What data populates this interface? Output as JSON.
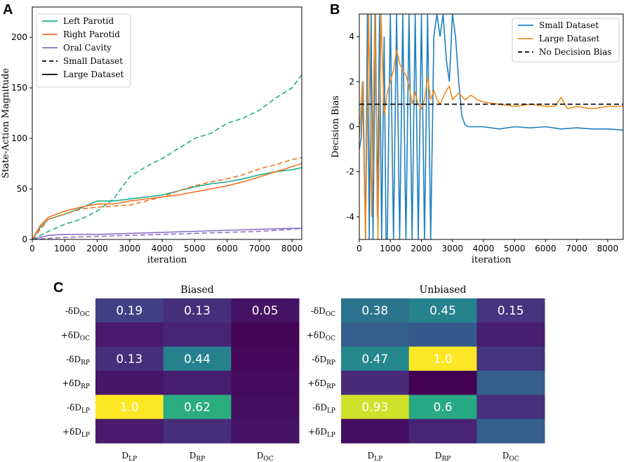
{
  "panels": {
    "a": "A",
    "b": "B",
    "c": "C"
  },
  "colors": {
    "left_parotid": "#1aaf8e",
    "right_parotid": "#f27322",
    "oral_cavity": "#8a72c8",
    "small_dataset": "#1f7fbf",
    "large_dataset": "#f38b1f",
    "no_bias": "#000000"
  },
  "chart_data": [
    {
      "id": "A",
      "type": "line",
      "xlabel": "iteration",
      "ylabel": "State-Action Magnitude",
      "xlim": [
        0,
        8300
      ],
      "ylim": [
        0,
        230
      ],
      "xticks": [
        0,
        1000,
        2000,
        3000,
        4000,
        5000,
        6000,
        7000,
        8000
      ],
      "yticks": [
        0,
        50,
        100,
        150,
        200
      ],
      "legend": {
        "position": "top-left",
        "entries": [
          {
            "label": "Left Parotid",
            "color": "#1aaf8e",
            "dash": false
          },
          {
            "label": "Right Parotid",
            "color": "#f27322",
            "dash": false
          },
          {
            "label": "Oral Cavity",
            "color": "#8a72c8",
            "dash": false
          },
          {
            "label": "Small Dataset",
            "color": "#000000",
            "dash": true
          },
          {
            "label": "Large Dataset",
            "color": "#000000",
            "dash": false
          }
        ]
      },
      "series": [
        {
          "name": "Left Parotid (Large)",
          "color": "#1aaf8e",
          "dash": false,
          "x": [
            0,
            250,
            500,
            1000,
            1500,
            2000,
            2500,
            3000,
            3500,
            4000,
            4500,
            5000,
            5500,
            6000,
            6500,
            7000,
            7500,
            8000,
            8300
          ],
          "y": [
            0,
            12,
            20,
            25,
            31,
            38,
            38,
            40,
            42,
            44,
            48,
            52,
            55,
            57,
            60,
            64,
            67,
            69,
            71
          ]
        },
        {
          "name": "Right Parotid (Large)",
          "color": "#f27322",
          "dash": false,
          "x": [
            0,
            250,
            500,
            1000,
            1500,
            2000,
            2500,
            3000,
            3500,
            4000,
            4500,
            5000,
            5500,
            6000,
            6500,
            7000,
            7500,
            8000,
            8300
          ],
          "y": [
            0,
            14,
            22,
            28,
            32,
            35,
            35,
            38,
            40,
            42,
            44,
            47,
            50,
            53,
            57,
            62,
            67,
            72,
            75
          ]
        },
        {
          "name": "Oral Cavity (Large)",
          "color": "#8a72c8",
          "dash": false,
          "x": [
            0,
            500,
            1000,
            2000,
            3000,
            4000,
            5000,
            6000,
            7000,
            8000,
            8300
          ],
          "y": [
            0,
            4,
            5,
            5,
            6,
            7,
            8,
            9,
            10,
            11,
            11
          ]
        },
        {
          "name": "Left Parotid (Small)",
          "color": "#1aaf8e",
          "dash": true,
          "x": [
            0,
            500,
            1000,
            1500,
            2000,
            2500,
            3000,
            3500,
            4000,
            4500,
            5000,
            5500,
            6000,
            6500,
            7000,
            7500,
            8000,
            8300
          ],
          "y": [
            0,
            8,
            15,
            20,
            28,
            40,
            62,
            72,
            80,
            90,
            100,
            105,
            115,
            120,
            128,
            140,
            150,
            163
          ]
        },
        {
          "name": "Right Parotid (Small)",
          "color": "#f27322",
          "dash": true,
          "x": [
            0,
            500,
            1000,
            1500,
            2000,
            2500,
            3000,
            3500,
            4000,
            4500,
            5000,
            5500,
            6000,
            6500,
            7000,
            7500,
            8000,
            8300
          ],
          "y": [
            0,
            20,
            25,
            30,
            32,
            33,
            34,
            38,
            42,
            48,
            53,
            57,
            60,
            64,
            70,
            74,
            79,
            81
          ]
        },
        {
          "name": "Oral Cavity (Small)",
          "color": "#8a72c8",
          "dash": true,
          "x": [
            0,
            1000,
            2000,
            3000,
            4000,
            5000,
            6000,
            7000,
            8000,
            8300
          ],
          "y": [
            0,
            2,
            3,
            4,
            5,
            6,
            7,
            8,
            10,
            11
          ]
        }
      ]
    },
    {
      "id": "B",
      "type": "line",
      "xlabel": "iteration",
      "ylabel": "Decision Bias",
      "xlim": [
        0,
        8500
      ],
      "ylim": [
        -5,
        5
      ],
      "xticks": [
        0,
        1000,
        2000,
        3000,
        4000,
        5000,
        6000,
        7000,
        8000
      ],
      "yticks": [
        -4,
        -2,
        0,
        2,
        4
      ],
      "legend": {
        "position": "top-right",
        "entries": [
          {
            "label": "Small Dataset",
            "color": "#1f7fbf",
            "dash": false
          },
          {
            "label": "Large Dataset",
            "color": "#f38b1f",
            "dash": false
          },
          {
            "label": "No Decision Bias",
            "color": "#000000",
            "dash": true
          }
        ]
      },
      "series": [
        {
          "name": "Small Dataset",
          "color": "#1f7fbf",
          "dash": false,
          "x": [
            0,
            60,
            120,
            200,
            260,
            320,
            380,
            440,
            520,
            580,
            650,
            720,
            800,
            860,
            900,
            1000,
            1100,
            1200,
            1300,
            1400,
            1500,
            1600,
            1700,
            1800,
            1900,
            2000,
            2100,
            2200,
            2300,
            2400,
            2500,
            2600,
            2700,
            2800,
            2900,
            3000,
            3100,
            3200,
            3300,
            3400,
            3500,
            4000,
            4500,
            5000,
            5500,
            6000,
            6500,
            7000,
            7500,
            8000,
            8500
          ],
          "y": [
            -1,
            -0.5,
            2,
            -5,
            5,
            -5,
            5,
            -5,
            5,
            -4,
            5,
            -5,
            4,
            -5,
            -5,
            5,
            -5,
            5,
            -5,
            5,
            -5,
            5,
            -5,
            5,
            -5,
            5,
            -5,
            5,
            -5,
            4,
            5,
            4,
            5,
            3,
            2,
            5,
            4,
            2,
            0.5,
            0.1,
            0.0,
            0.0,
            -0.1,
            0.0,
            -0.05,
            0.0,
            -0.1,
            -0.05,
            -0.1,
            -0.1,
            -0.15
          ]
        },
        {
          "name": "Large Dataset",
          "color": "#f38b1f",
          "dash": false,
          "x": [
            0,
            100,
            200,
            300,
            400,
            500,
            600,
            700,
            800,
            900,
            1000,
            1100,
            1200,
            1300,
            1400,
            1500,
            1600,
            1700,
            1800,
            1900,
            2000,
            2100,
            2200,
            2300,
            2400,
            2500,
            2600,
            2700,
            2800,
            2900,
            3000,
            3200,
            3400,
            3600,
            3800,
            4000,
            4500,
            5000,
            5500,
            6000,
            6300,
            6500,
            6700,
            7000,
            7500,
            8000,
            8500
          ],
          "y": [
            -0.5,
            2,
            -5,
            5,
            -4,
            5,
            -5,
            5,
            0.5,
            1.5,
            2.0,
            2.5,
            3.4,
            2.8,
            2.5,
            2.3,
            1.8,
            1.0,
            1.5,
            1.0,
            0.8,
            1.2,
            2.2,
            1.2,
            1.6,
            1.2,
            1.0,
            1.3,
            1.6,
            1.8,
            1.2,
            1.5,
            1.2,
            1.4,
            1.2,
            1.1,
            1.0,
            0.9,
            1.0,
            0.9,
            0.9,
            1.3,
            0.8,
            0.9,
            0.8,
            0.9,
            0.9
          ]
        },
        {
          "name": "No Decision Bias",
          "color": "#000000",
          "dash": true,
          "x": [
            0,
            8500
          ],
          "y": [
            1,
            1
          ]
        }
      ]
    },
    {
      "id": "C1",
      "type": "heatmap",
      "title": "Biased",
      "row_labels": [
        "-δD",
        "+δD",
        "-δD",
        "+δD",
        "-δD",
        "+δD"
      ],
      "row_subs": [
        "OC",
        "OC",
        "RP",
        "RP",
        "LP",
        "LP"
      ],
      "col_labels": [
        "D",
        "D",
        "D"
      ],
      "col_subs": [
        "LP",
        "RP",
        "OC"
      ],
      "values": [
        [
          0.19,
          0.13,
          0.05
        ],
        [
          0.07,
          0.1,
          0.01
        ],
        [
          0.13,
          0.44,
          0.02
        ],
        [
          0.06,
          0.08,
          0.03
        ],
        [
          1.0,
          0.62,
          0.04
        ],
        [
          0.07,
          0.13,
          0.05
        ]
      ],
      "labels": [
        [
          "0.19",
          "0.13",
          "0.05"
        ],
        [
          "",
          "",
          ""
        ],
        [
          "0.13",
          "0.44",
          ""
        ],
        [
          "",
          "",
          ""
        ],
        [
          "1.0",
          "0.62",
          ""
        ],
        [
          "",
          "",
          ""
        ]
      ]
    },
    {
      "id": "C2",
      "type": "heatmap",
      "title": "Unbiased",
      "row_labels": [
        "-δD",
        "+δD",
        "-δD",
        "+δD",
        "-δD",
        "+δD"
      ],
      "row_subs": [
        "OC",
        "OC",
        "RP",
        "RP",
        "LP",
        "LP"
      ],
      "col_labels": [
        "D",
        "D",
        "D"
      ],
      "col_subs": [
        "LP",
        "RP",
        "OC"
      ],
      "values": [
        [
          0.38,
          0.45,
          0.15
        ],
        [
          0.3,
          0.28,
          0.08
        ],
        [
          0.47,
          1.0,
          0.15
        ],
        [
          0.12,
          0.0,
          0.3
        ],
        [
          0.93,
          0.6,
          0.14
        ],
        [
          0.04,
          0.1,
          0.3
        ]
      ],
      "labels": [
        [
          "0.38",
          "0.45",
          "0.15"
        ],
        [
          "",
          "",
          ""
        ],
        [
          "0.47",
          "1.0",
          ""
        ],
        [
          "",
          "",
          ""
        ],
        [
          "0.93",
          "0.6",
          ""
        ],
        [
          "",
          "",
          ""
        ]
      ]
    }
  ]
}
